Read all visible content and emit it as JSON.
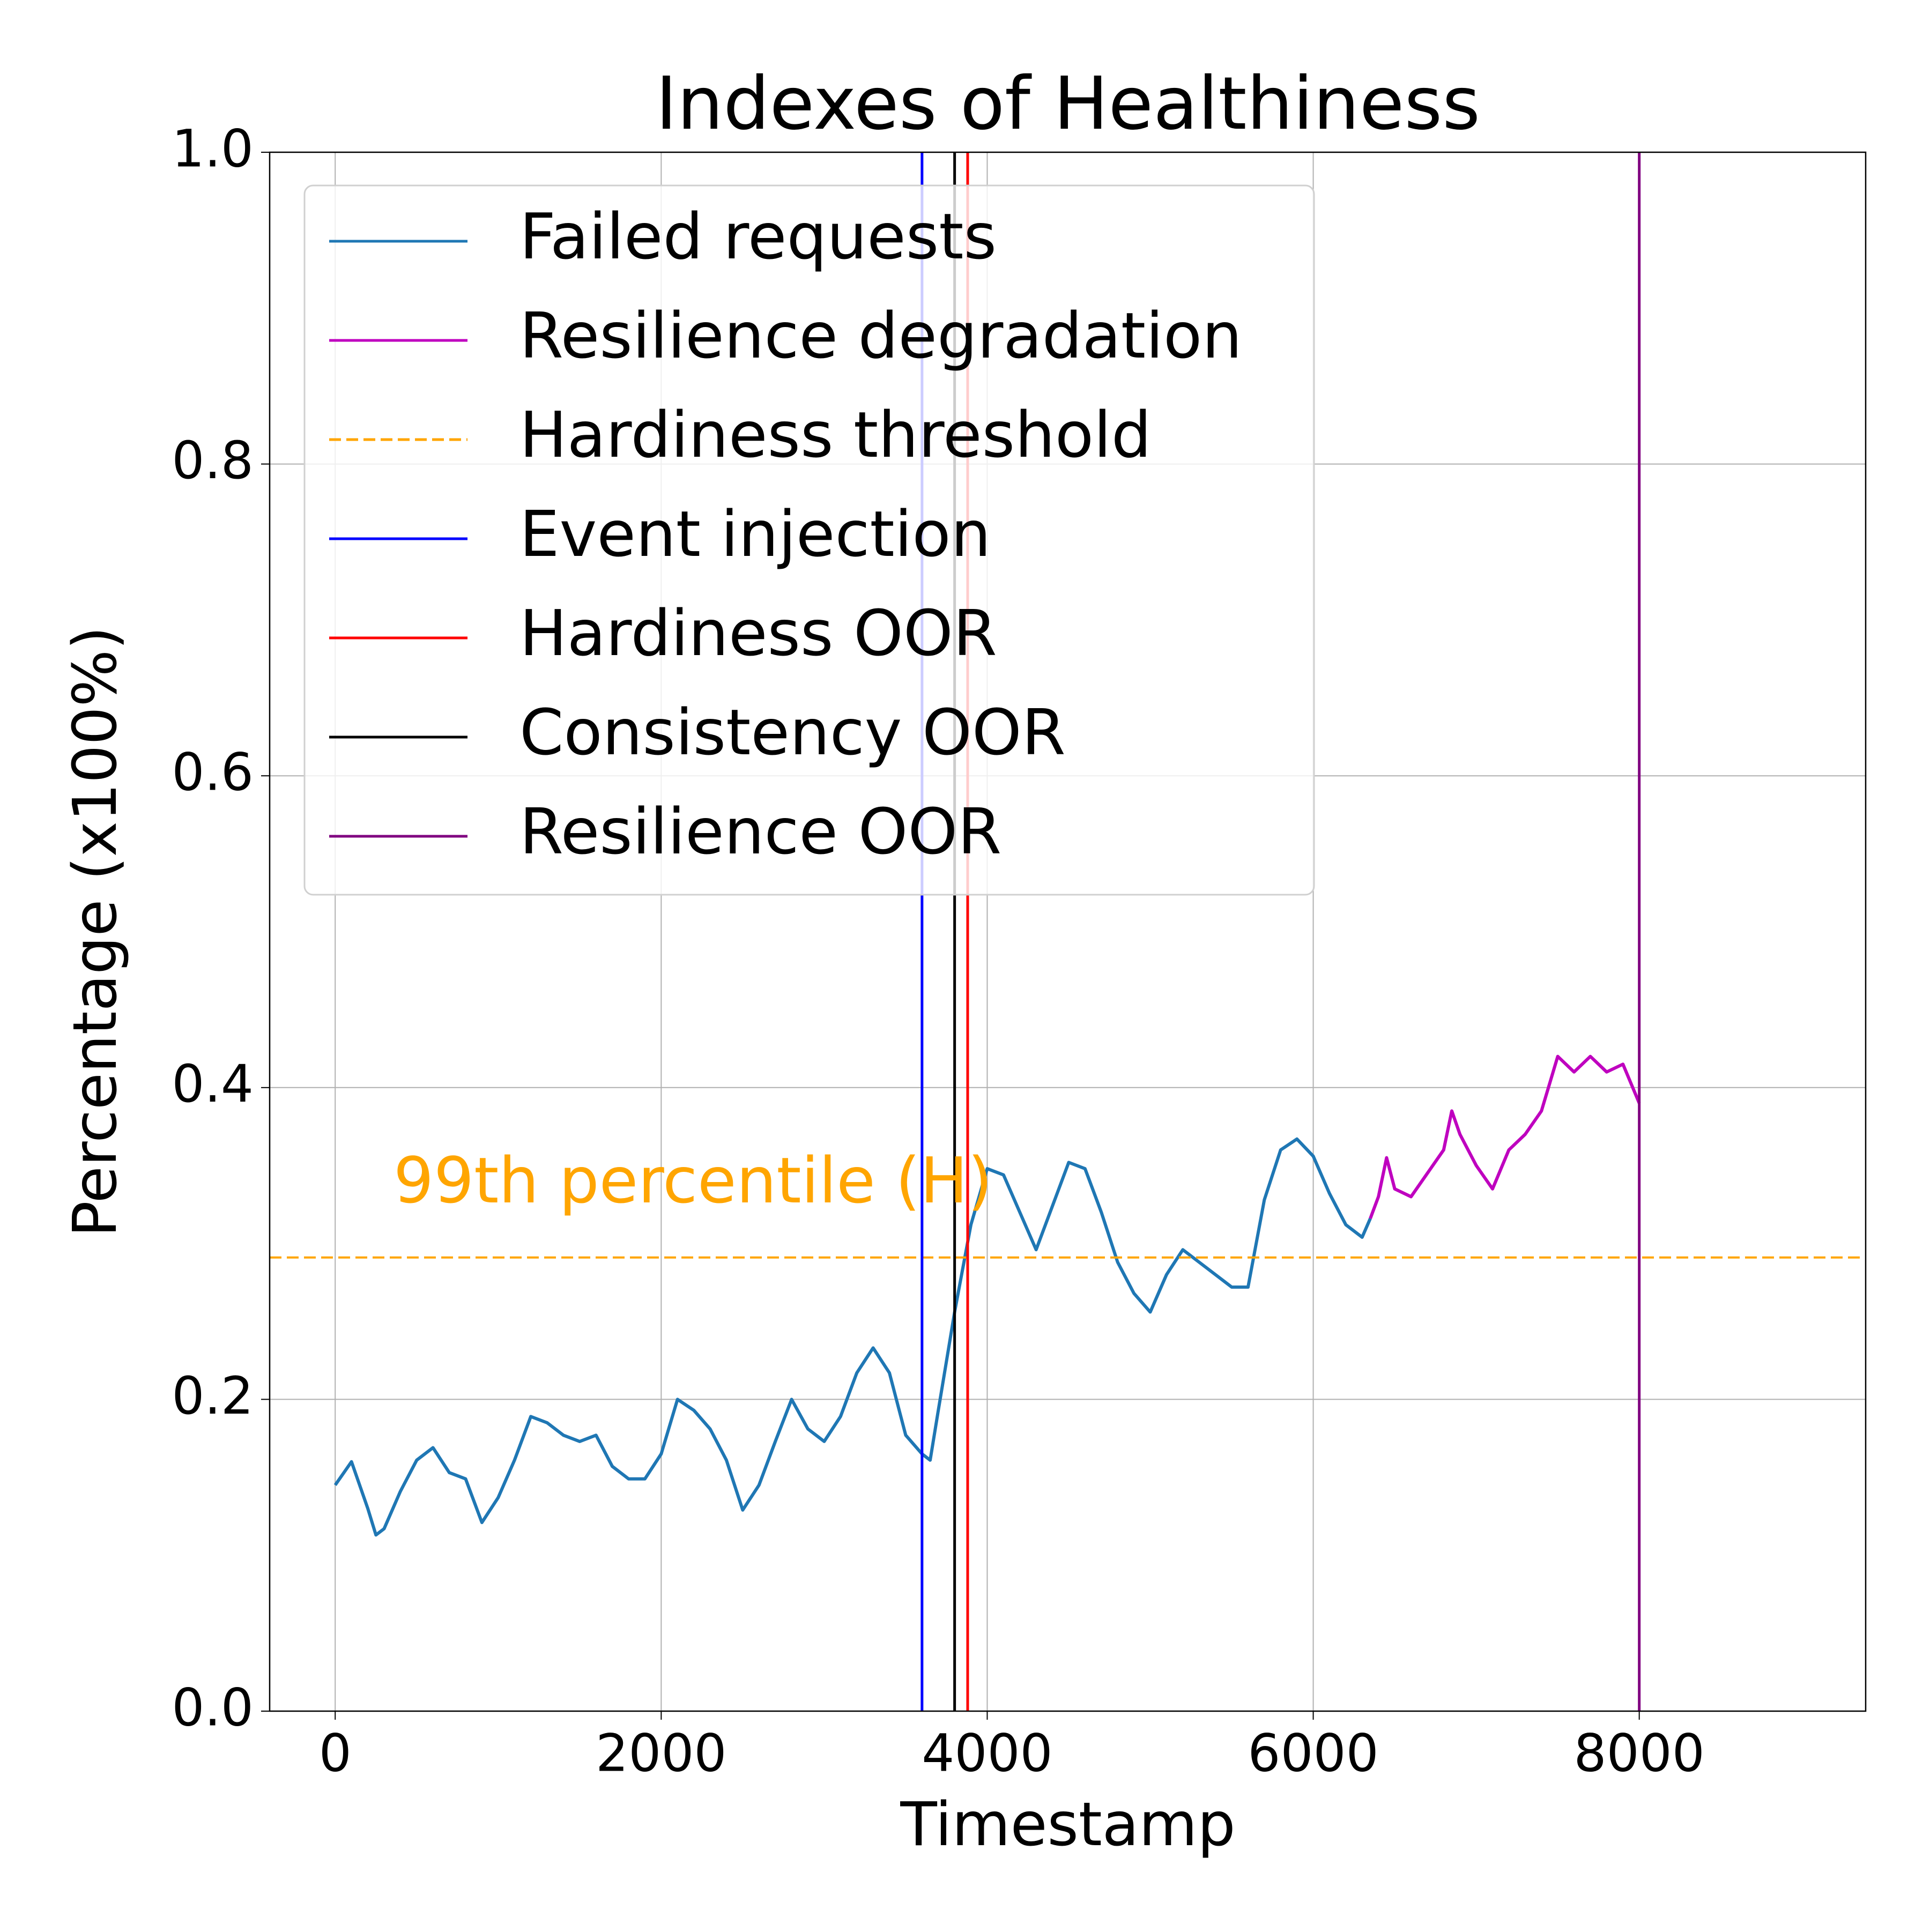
{
  "chart_data": {
    "type": "line",
    "title": "Indexes of Healthiness",
    "x_label": "Timestamp",
    "y_label": "Percentage (x100%)",
    "xlim": [
      -402,
      9389
    ],
    "xticks": [
      0,
      2000,
      4000,
      6000,
      8000
    ],
    "ylim": [
      0,
      1
    ],
    "yticks": [
      {
        "value": 0,
        "label": "0.0"
      },
      0.2,
      0.4,
      0.6,
      0.8,
      {
        "value": 1,
        "label": "1.0"
      }
    ],
    "grid": true,
    "legend": "upper left",
    "series": [
      {
        "name": "Failed requests",
        "color": "#1f77b4",
        "x": [
          0,
          100,
          200,
          250,
          300,
          400,
          500,
          600,
          700,
          800,
          900,
          1000,
          1100,
          1200,
          1300,
          1400,
          1500,
          1600,
          1700,
          1800,
          1900,
          2000,
          2100,
          2200,
          2300,
          2400,
          2500,
          2600,
          2700,
          2800,
          2900,
          3000,
          3100,
          3200,
          3300,
          3400,
          3500,
          3600,
          3650,
          3700,
          3800,
          3900,
          4000,
          4100,
          4200,
          4300,
          4400,
          4500,
          4600,
          4700,
          4800,
          4900,
          5000,
          5100,
          5200,
          5300,
          5400,
          5500,
          5600,
          5700,
          5800,
          5900,
          6000,
          6100,
          6200,
          6300,
          6350
        ],
        "values": [
          0.145,
          0.16,
          0.13,
          0.113,
          0.117,
          0.141,
          0.161,
          0.169,
          0.153,
          0.149,
          0.121,
          0.137,
          0.161,
          0.189,
          0.185,
          0.177,
          0.173,
          0.177,
          0.157,
          0.149,
          0.149,
          0.165,
          0.2,
          0.193,
          0.181,
          0.161,
          0.129,
          0.145,
          0.173,
          0.2,
          0.181,
          0.173,
          0.189,
          0.217,
          0.233,
          0.217,
          0.177,
          0.165,
          0.161,
          0.193,
          0.256,
          0.312,
          0.348,
          0.344,
          0.32,
          0.296,
          0.324,
          0.352,
          0.348,
          0.32,
          0.288,
          0.268,
          0.256,
          0.28,
          0.296,
          0.288,
          0.28,
          0.272,
          0.272,
          0.328,
          0.36,
          0.367,
          0.356,
          0.332,
          0.312,
          0.304,
          0.316
        ]
      },
      {
        "name": "Resilience degradation",
        "color": "#bf00bf",
        "x": [
          6350,
          6400,
          6450,
          6500,
          6600,
          6700,
          6800,
          6850,
          6900,
          7000,
          7100,
          7200,
          7300,
          7400,
          7500,
          7600,
          7700,
          7800,
          7900,
          8000
        ],
        "values": [
          0.316,
          0.33,
          0.355,
          0.335,
          0.33,
          0.345,
          0.36,
          0.385,
          0.37,
          0.35,
          0.335,
          0.36,
          0.37,
          0.385,
          0.42,
          0.41,
          0.42,
          0.41,
          0.415,
          0.39
        ]
      }
    ],
    "reference_lines": [
      {
        "name": "Hardiness threshold",
        "color": "orange",
        "style": "dashed",
        "axis": "y",
        "value": 0.291
      },
      {
        "name": "Event injection",
        "color": "blue",
        "style": "solid",
        "axis": "x",
        "value": 3600
      },
      {
        "name": "Hardiness OOR",
        "color": "red",
        "style": "solid",
        "axis": "x",
        "value": 3880
      },
      {
        "name": "Consistency OOR",
        "color": "black",
        "style": "solid",
        "axis": "x",
        "value": 3800
      },
      {
        "name": "Resilience OOR",
        "color": "purple",
        "style": "solid",
        "axis": "x",
        "value": 8000
      }
    ],
    "annotation": {
      "text": "99th percentile (H)",
      "color": "orange"
    }
  }
}
